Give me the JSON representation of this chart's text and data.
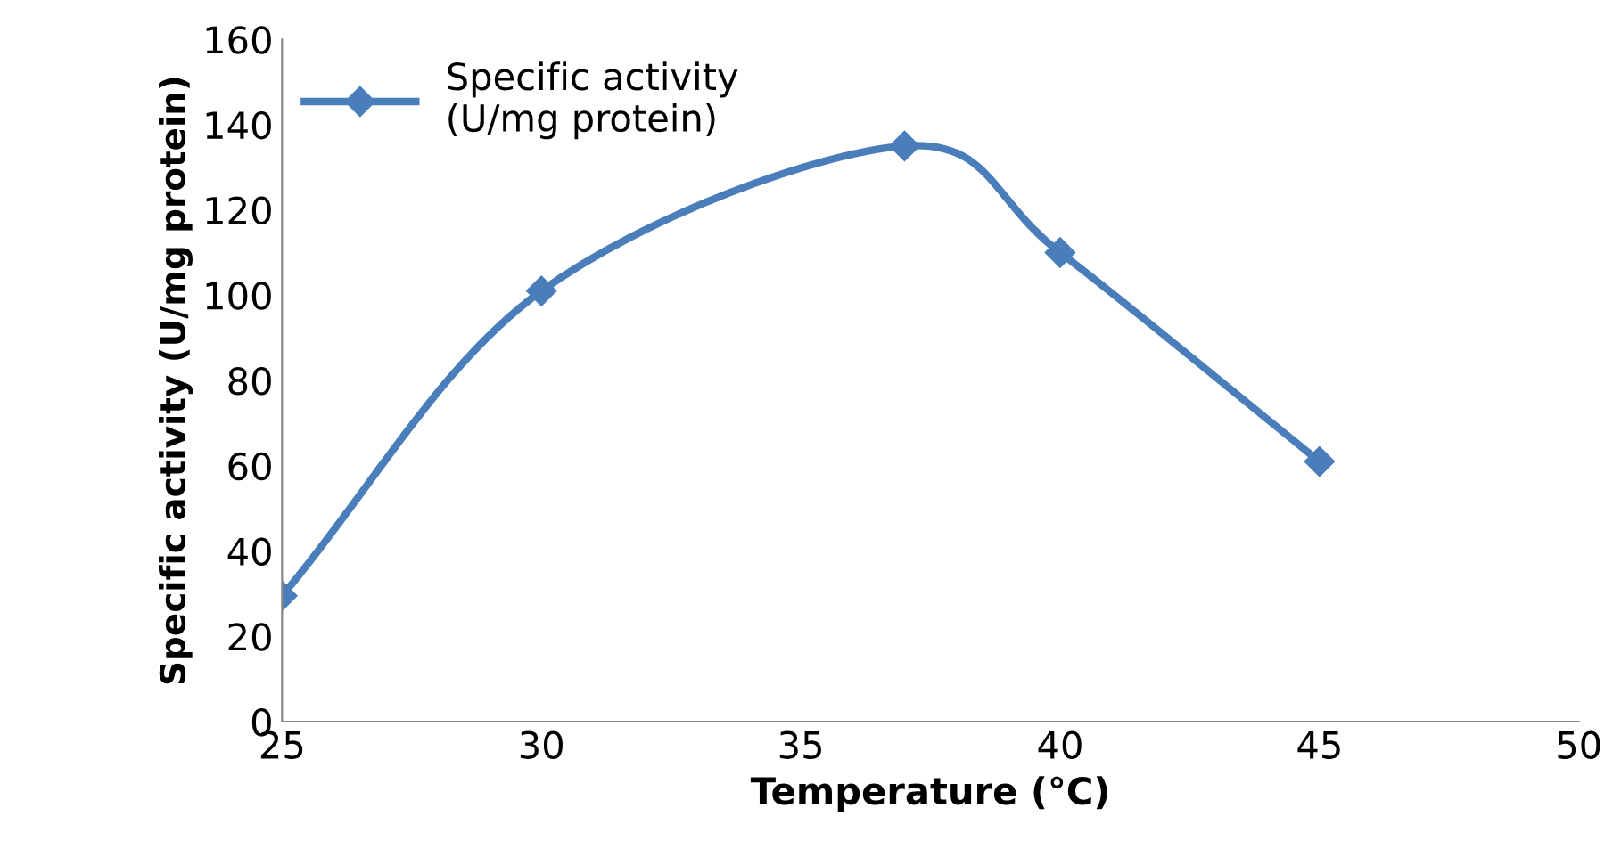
{
  "chart_data": {
    "type": "line",
    "xlabel": "Temperature (°C)",
    "ylabel": "Specific activity (U/mg protein)",
    "x": [
      25,
      30,
      37,
      40,
      45
    ],
    "series": [
      {
        "name": "Specific activity\n(U/mg protein)",
        "color": "#4a7ebb",
        "values": [
          29.5,
          101,
          135,
          110,
          61
        ]
      }
    ],
    "xlim": [
      25,
      50
    ],
    "xticks": [
      25,
      30,
      35,
      40,
      45,
      50
    ],
    "ylim": [
      0,
      160
    ],
    "yticks": [
      0,
      20,
      40,
      60,
      80,
      100,
      120,
      140,
      160
    ],
    "grid": false,
    "legend": "top left",
    "marker": "diamond",
    "line_style": "solid"
  }
}
